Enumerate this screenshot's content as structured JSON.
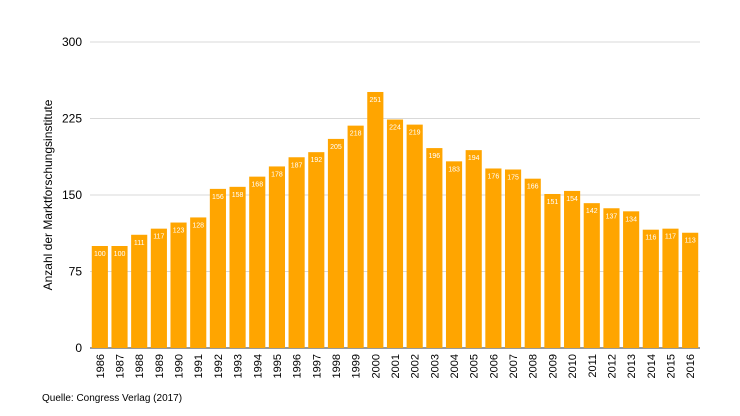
{
  "chart_data": {
    "type": "bar",
    "ylabel": "Anzahl der Marktforschungsinstitute",
    "xlabel": "",
    "ylim": [
      0,
      300
    ],
    "yticks": [
      0,
      75,
      150,
      225,
      300
    ],
    "grid": true,
    "categories": [
      "1986",
      "1987",
      "1988",
      "1989",
      "1990",
      "1991",
      "1992",
      "1993",
      "1994",
      "1995",
      "1996",
      "1997",
      "1998",
      "1999",
      "2000",
      "2001",
      "2002",
      "2003",
      "2004",
      "2005",
      "2006",
      "2007",
      "2008",
      "2009",
      "2010",
      "2011",
      "2012",
      "2013",
      "2014",
      "2015",
      "2016"
    ],
    "values": [
      100,
      100,
      111,
      117,
      123,
      128,
      156,
      158,
      168,
      178,
      187,
      192,
      205,
      218,
      251,
      224,
      219,
      196,
      183,
      194,
      176,
      175,
      166,
      151,
      154,
      142,
      137,
      134,
      116,
      117,
      113
    ],
    "bar_color": "#FFA500",
    "label_color": "#ffffff"
  },
  "source": "Quelle: Congress Verlag (2017)"
}
